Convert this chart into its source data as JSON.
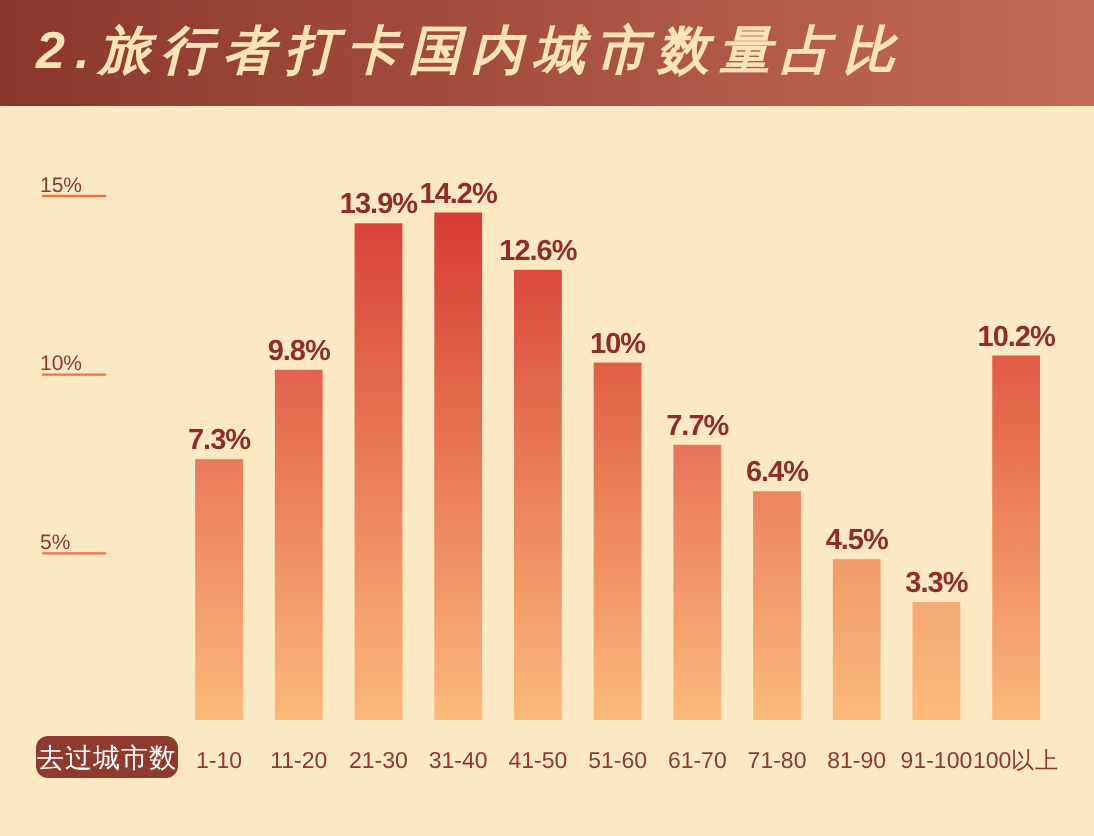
{
  "chart_data": {
    "type": "bar",
    "title": "2.旅行者打卡国内城市数量占比",
    "xlabel": "去过城市数",
    "categories": [
      "1-10",
      "11-20",
      "21-30",
      "31-40",
      "41-50",
      "51-60",
      "61-70",
      "71-80",
      "81-90",
      "91-100",
      "100以上"
    ],
    "values": [
      7.3,
      9.8,
      13.9,
      14.2,
      12.6,
      10,
      7.7,
      6.4,
      4.5,
      3.3,
      10.2
    ],
    "value_labels": [
      "7.3%",
      "9.8%",
      "13.9%",
      "14.2%",
      "12.6%",
      "10%",
      "7.7%",
      "6.4%",
      "4.5%",
      "3.3%",
      "10.2%"
    ],
    "colors": [
      "#ea7a5c",
      "#e2624b",
      "#d8423a",
      "#d63a33",
      "#da4a3d",
      "#e05e46",
      "#e8735a",
      "#ec8460",
      "#f09a6a",
      "#f4aa74",
      "#e05a45"
    ],
    "ylim": [
      0,
      15
    ],
    "yticks": [
      {
        "value": 5,
        "label": "5%"
      },
      {
        "value": 10,
        "label": "10%"
      },
      {
        "value": 15,
        "label": "15%"
      }
    ]
  }
}
